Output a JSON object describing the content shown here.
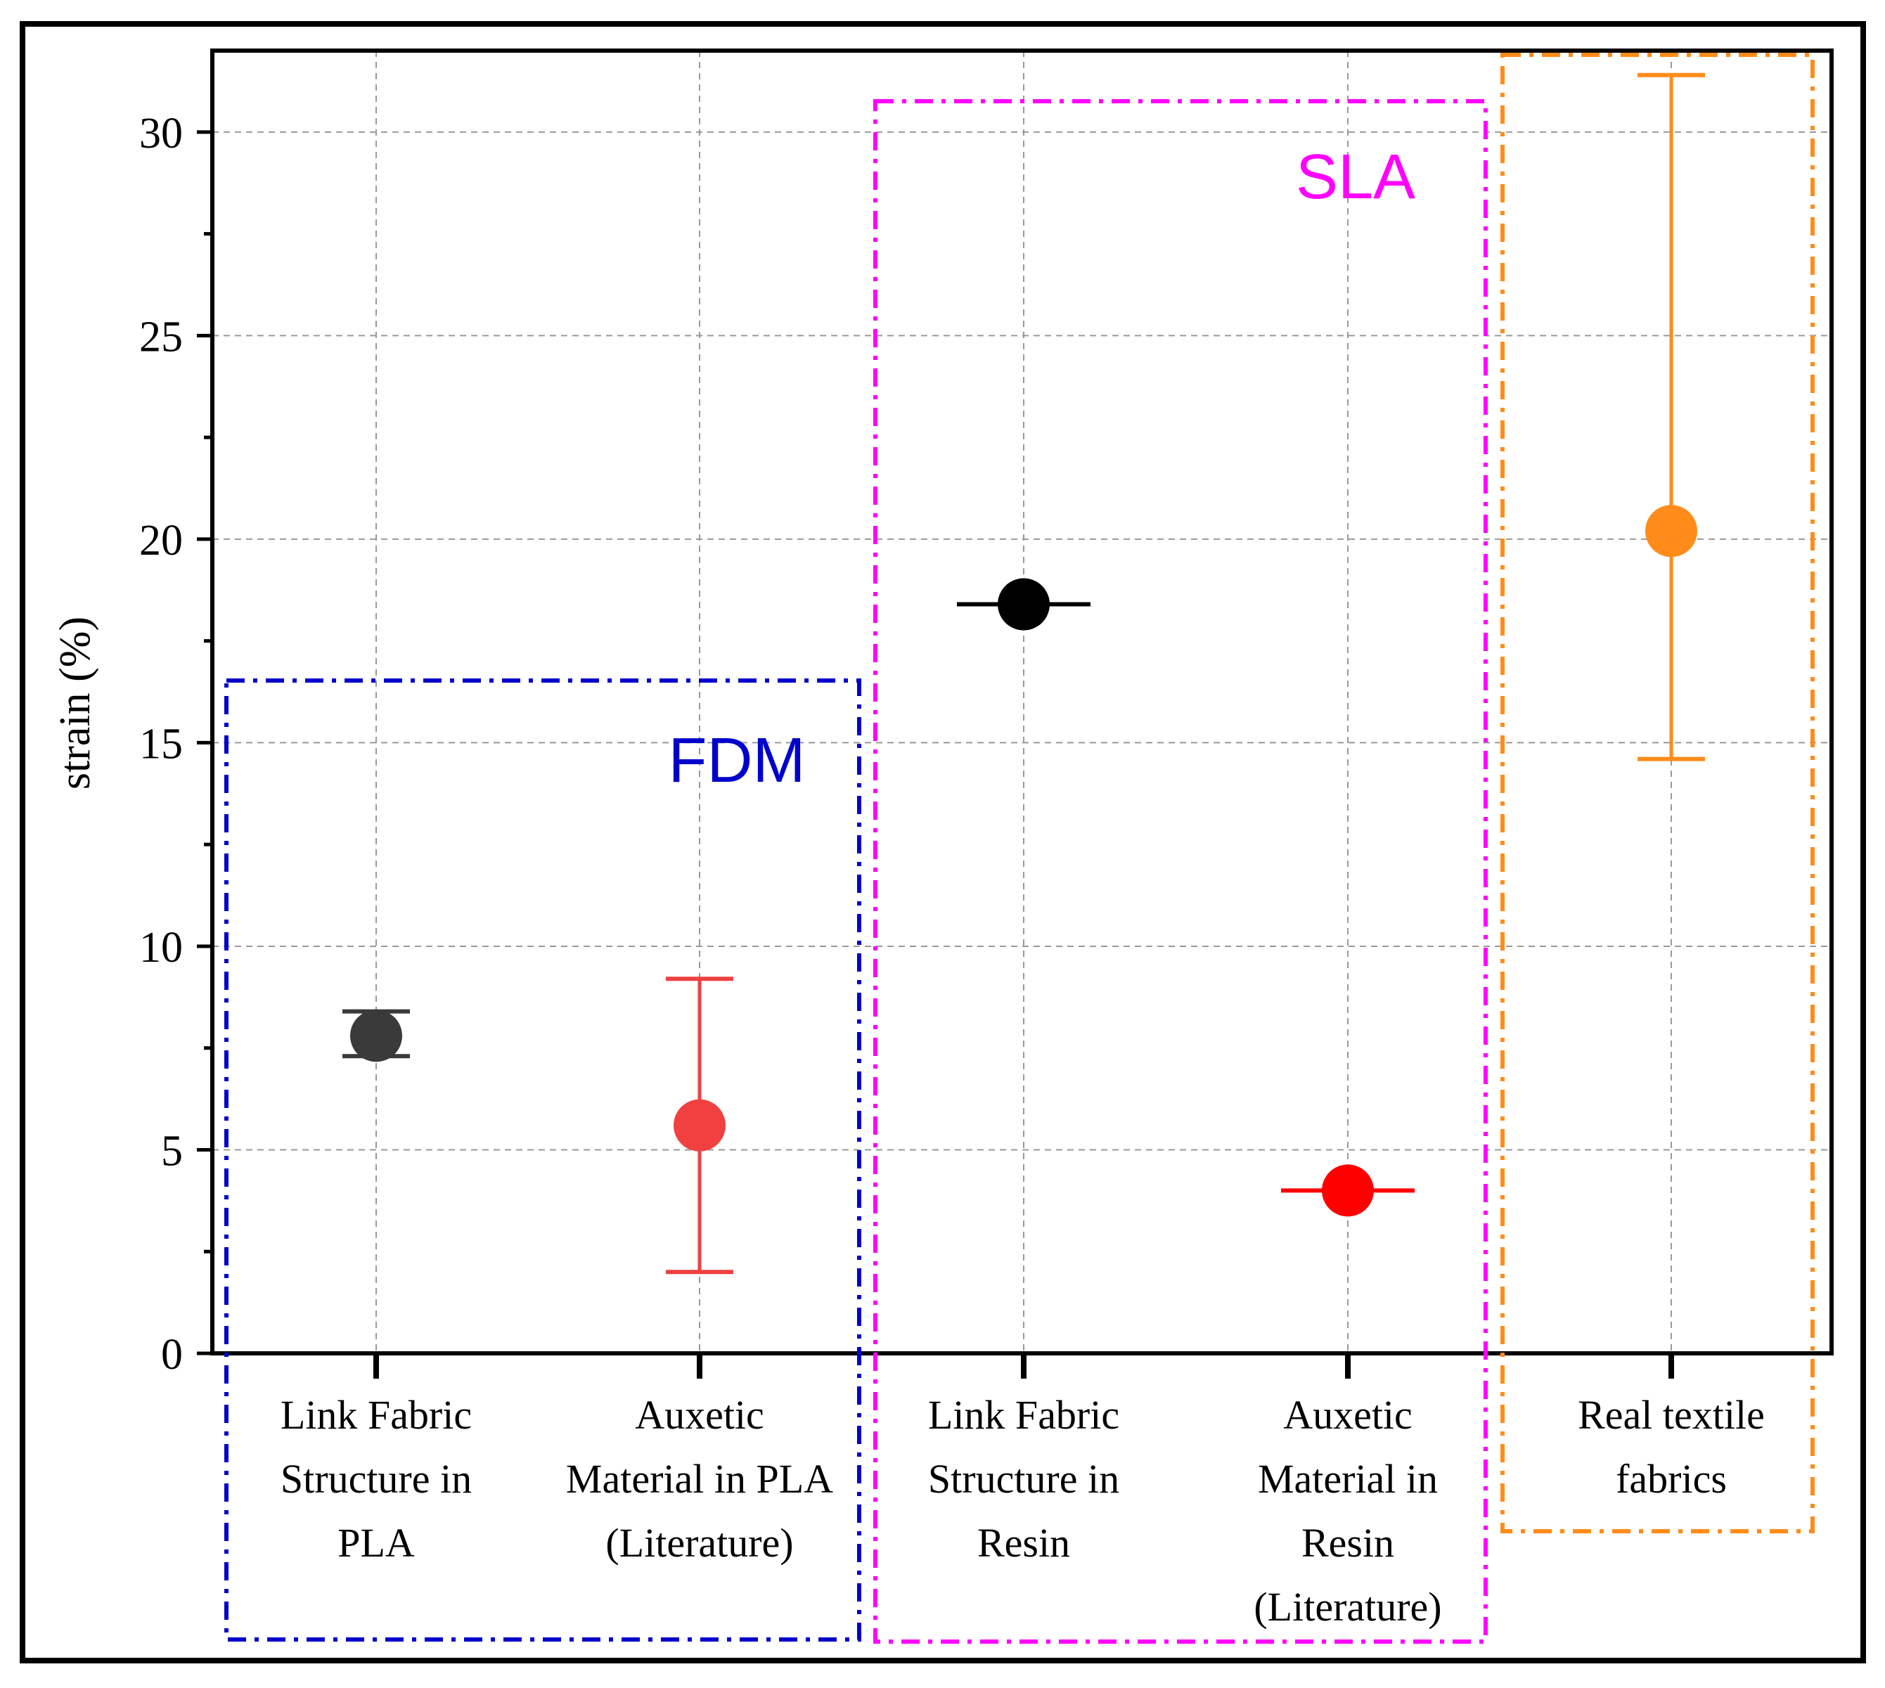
{
  "chart_data": {
    "type": "scatter",
    "title": "",
    "xlabel": "",
    "ylabel": "strain (%)",
    "ylim": [
      0,
      32
    ],
    "yticks": [
      0,
      5,
      10,
      15,
      20,
      25,
      30
    ],
    "grid": true,
    "categories": [
      [
        "Link Fabric",
        "Structure  in",
        "PLA"
      ],
      [
        "Auxetic",
        "Material in PLA",
        "(Literature)"
      ],
      [
        "Link Fabric",
        "Structure  in",
        "Resin"
      ],
      [
        "Auxetic",
        "Material in",
        "Resin",
        "(Literature)"
      ],
      [
        "Real textile",
        "fabrics"
      ]
    ],
    "points": [
      {
        "category_index": 0,
        "value": 7.8,
        "error_low": 7.3,
        "error_high": 8.4,
        "color": "#3a3a3a"
      },
      {
        "category_index": 1,
        "value": 5.6,
        "error_low": 2.0,
        "error_high": 9.2,
        "color": "#f04040"
      },
      {
        "category_index": 2,
        "value": 18.4,
        "error_low": 18.4,
        "error_high": 18.4,
        "color": "#000000"
      },
      {
        "category_index": 3,
        "value": 4.0,
        "error_low": 4.0,
        "error_high": 4.0,
        "color": "#ff0000"
      },
      {
        "category_index": 4,
        "value": 20.2,
        "error_low": 14.6,
        "error_high": 31.4,
        "color": "#ff8c1a"
      }
    ],
    "groups": [
      {
        "label": "FDM",
        "categories": [
          0,
          1
        ],
        "color": "#0000cc"
      },
      {
        "label": "SLA",
        "categories": [
          2,
          3
        ],
        "color": "#ff00ff"
      },
      {
        "label": "",
        "categories": [
          4
        ],
        "color": "#ff8c1a"
      }
    ]
  }
}
